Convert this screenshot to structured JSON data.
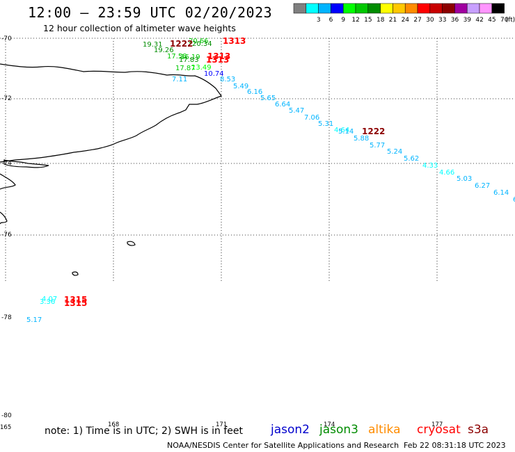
{
  "header": {
    "title": "12:00 – 23:59 UTC 02/20/2023",
    "subtitle": "12 hour collection of altimeter wave heights"
  },
  "color_scale": {
    "unit_label": "(ft)",
    "swatches": [
      {
        "color": "#808080",
        "label": ""
      },
      {
        "color": "#00ffff",
        "label": "3"
      },
      {
        "color": "#00b4ff",
        "label": "6"
      },
      {
        "color": "#0000ff",
        "label": "9"
      },
      {
        "color": "#00ff00",
        "label": "12"
      },
      {
        "color": "#00c800",
        "label": "15"
      },
      {
        "color": "#008c00",
        "label": "18"
      },
      {
        "color": "#ffff00",
        "label": "21"
      },
      {
        "color": "#ffc800",
        "label": "24"
      },
      {
        "color": "#ff8c00",
        "label": "27"
      },
      {
        "color": "#ff0000",
        "label": "30"
      },
      {
        "color": "#c80000",
        "label": "33"
      },
      {
        "color": "#8c0000",
        "label": "36"
      },
      {
        "color": "#a000a0",
        "label": "39"
      },
      {
        "color": "#c8a0ff",
        "label": "42"
      },
      {
        "color": "#ff96ff",
        "label": "45"
      },
      {
        "color": "#000000",
        "label": "70"
      }
    ]
  },
  "axes": {
    "lat_labels": [
      "-70",
      "-72",
      "-74",
      "-76",
      "-78",
      "-80"
    ],
    "lon_labels": [
      "165",
      "168",
      "171",
      "174",
      "177"
    ]
  },
  "map": {
    "lon_range": [
      165,
      180
    ],
    "lat_range": [
      -80,
      -70
    ]
  },
  "observations": [
    {
      "value": "19.31",
      "color": "#008c00"
    },
    {
      "value": "19.26",
      "color": "#008c00"
    },
    {
      "value": "17.58",
      "color": "#00c800"
    },
    {
      "value": "16.19",
      "color": "#00c800"
    },
    {
      "value": "17.83",
      "color": "#008c00"
    },
    {
      "value": "17.87",
      "color": "#00c800"
    },
    {
      "value": "13.49",
      "color": "#00ff00"
    },
    {
      "value": "10.74",
      "color": "#0000ff"
    },
    {
      "value": "7.11",
      "color": "#00b4ff"
    },
    {
      "value": "8.53",
      "color": "#00b4ff"
    },
    {
      "value": "5.49",
      "color": "#00b4ff"
    },
    {
      "value": "6.16",
      "color": "#00b4ff"
    },
    {
      "value": "5.65",
      "color": "#00b4ff"
    },
    {
      "value": "6.64",
      "color": "#00b4ff"
    },
    {
      "value": "5.47",
      "color": "#00b4ff"
    },
    {
      "value": "7.06",
      "color": "#00b4ff"
    },
    {
      "value": "5.31",
      "color": "#00b4ff"
    },
    {
      "value": "4.64",
      "color": "#00ffff"
    },
    {
      "value": "5.14",
      "color": "#00b4ff"
    },
    {
      "value": "5.88",
      "color": "#00b4ff"
    },
    {
      "value": "5.77",
      "color": "#00b4ff"
    },
    {
      "value": "5.24",
      "color": "#00b4ff"
    },
    {
      "value": "5.62",
      "color": "#00b4ff"
    },
    {
      "value": "4.33",
      "color": "#00ffff"
    },
    {
      "value": "4.66",
      "color": "#00ffff"
    },
    {
      "value": "5.03",
      "color": "#00b4ff"
    },
    {
      "value": "6.27",
      "color": "#00b4ff"
    },
    {
      "value": "6.14",
      "color": "#00b4ff"
    },
    {
      "value": "6",
      "color": "#00b4ff"
    },
    {
      "value": "4.07",
      "color": "#00ffff"
    },
    {
      "value": "3.36",
      "color": "#00ffff"
    },
    {
      "value": "5.17",
      "color": "#00b4ff"
    },
    {
      "value": "20.66",
      "color": "#00c800"
    },
    {
      "value": "20.34",
      "color": "#008c00"
    }
  ],
  "times": [
    {
      "value": "1222",
      "color": "#8c0000"
    },
    {
      "value": "1313",
      "color": "#ff0000"
    },
    {
      "value": "1313",
      "color": "#ff0000"
    },
    {
      "value": "1313",
      "color": "#ff0000"
    },
    {
      "value": "1222",
      "color": "#8c0000"
    },
    {
      "value": "1315",
      "color": "#ff0000"
    },
    {
      "value": "1315",
      "color": "#ff0000"
    }
  ],
  "footer": {
    "note": "note:  1) Time is in UTC;  2) SWH is in feet",
    "credit": "NOAA/NESDIS Center for Satellite Applications and Research",
    "timestamp": "Feb 22 08:31:18 UTC 2023",
    "satellites": [
      {
        "name": "jason2",
        "color": "#0000cc"
      },
      {
        "name": "jason3",
        "color": "#008c00"
      },
      {
        "name": "altika",
        "color": "#ff8c00"
      },
      {
        "name": "cryosat",
        "color": "#ff0000"
      },
      {
        "name": "s3a",
        "color": "#8c0000"
      }
    ]
  }
}
